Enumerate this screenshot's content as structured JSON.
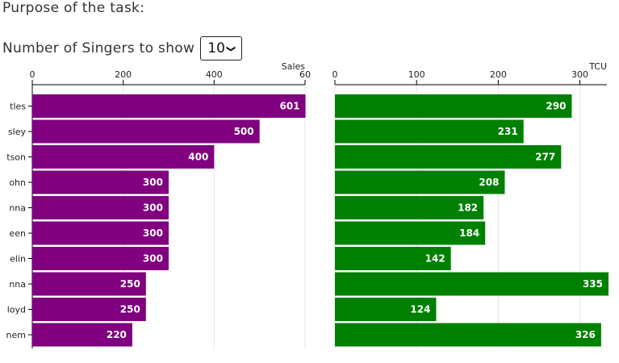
{
  "header": {
    "purpose": "Purpose of the task:",
    "singers_label": "Number of Singers to show",
    "singers_selected": "10"
  },
  "chart_data": [
    {
      "type": "bar",
      "orientation": "horizontal",
      "xlabel": "Sales",
      "xlim": [
        0,
        600
      ],
      "ticks": [
        "0",
        "200",
        "400",
        "60"
      ],
      "categories": [
        "tles",
        "sley",
        "tson",
        "ohn",
        "nna",
        "een",
        "elin",
        "nna",
        "loyd",
        "nem"
      ],
      "values": [
        601,
        500,
        400,
        300,
        300,
        300,
        300,
        250,
        250,
        220
      ],
      "color": "#800080",
      "grid": true
    },
    {
      "type": "bar",
      "orientation": "horizontal",
      "xlabel": "TCU",
      "xlim": [
        0,
        335
      ],
      "ticks": [
        "0",
        "100",
        "200",
        "300"
      ],
      "values": [
        290,
        231,
        277,
        208,
        182,
        184,
        142,
        335,
        124,
        326
      ],
      "color": "#008000",
      "grid": true
    }
  ]
}
